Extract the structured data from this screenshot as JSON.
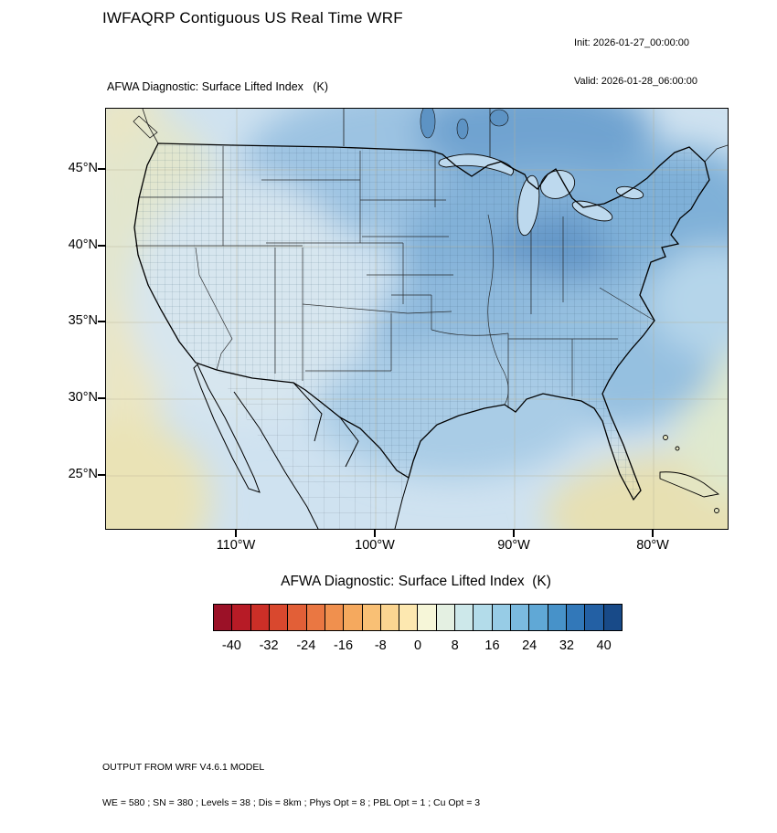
{
  "header": {
    "title": "IWFAQRP Contiguous US Real Time WRF",
    "init_label": "Init: 2026-01-27_00:00:00",
    "valid_label": "Valid: 2026-01-28_06:00:00"
  },
  "map": {
    "field_label": "AFWA Diagnostic: Surface Lifted Index   (K)",
    "lat_ticks": [
      "45°N",
      "40°N",
      "35°N",
      "30°N",
      "25°N"
    ],
    "lon_ticks": [
      "110°W",
      "100°W",
      "90°W",
      "80°W"
    ]
  },
  "colorbar": {
    "title": "AFWA Diagnostic: Surface Lifted Index  (K)",
    "tick_labels": [
      "-40",
      "-32",
      "-24",
      "-16",
      "-8",
      "0",
      "8",
      "16",
      "24",
      "32",
      "40"
    ],
    "colors": [
      "#9b1127",
      "#b71b26",
      "#cc2f27",
      "#d9482e",
      "#e25f37",
      "#ea7742",
      "#f0904e",
      "#f5a95e",
      "#f9c075",
      "#fbd591",
      "#fde8b0",
      "#f6f6d8",
      "#e4f0e2",
      "#cde8ea",
      "#b3dcea",
      "#97cce6",
      "#7bbadf",
      "#60a8d6",
      "#4792c9",
      "#3278b9",
      "#2360a4",
      "#184a88"
    ]
  },
  "footer": {
    "line1": "OUTPUT FROM WRF V4.6.1 MODEL",
    "line2": "WE = 580 ; SN = 380 ; Levels = 38 ; Dis = 8km ; Phys Opt = 8 ; PBL Opt = 1 ; Cu Opt = 3"
  },
  "chart_data": {
    "type": "heatmap",
    "subtype": "filled_contour_map",
    "title": "AFWA Diagnostic: Surface Lifted Index  (K)",
    "units": "K",
    "region": "Contiguous United States (WRF domain with county boundaries)",
    "lat_tick_values_deg_n": [
      45,
      40,
      35,
      30,
      25
    ],
    "lon_tick_values_deg_w": [
      110,
      100,
      90,
      80
    ],
    "colorbar_ticks": [
      -40,
      -32,
      -24,
      -16,
      -8,
      0,
      8,
      16,
      24,
      32,
      40
    ],
    "colorbar_cell_width_K": 4,
    "colorbar_range_K": [
      -44,
      44
    ],
    "colorbar_colors_ref": "colorbar.colors",
    "legend_position": "bottom",
    "grid_estimate": {
      "note": "Approximate surface lifted index (K) read from fill colors; field is stable (positive) everywhere, darkest blues over Midwest/Ohio Valley, pale yellow near West Coast and open ocean corners",
      "lats_deg_n": [
        47,
        42,
        37,
        32,
        27
      ],
      "lons_deg_w": [
        122,
        115,
        110,
        105,
        100,
        95,
        90,
        85,
        80,
        75
      ],
      "values_K": [
        [
          4,
          10,
          14,
          16,
          20,
          24,
          26,
          24,
          20,
          16
        ],
        [
          2,
          8,
          12,
          14,
          18,
          26,
          30,
          28,
          22,
          18
        ],
        [
          2,
          6,
          10,
          12,
          16,
          24,
          28,
          26,
          22,
          16
        ],
        [
          4,
          6,
          8,
          12,
          16,
          20,
          22,
          20,
          16,
          12
        ],
        [
          4,
          4,
          8,
          12,
          14,
          16,
          16,
          14,
          12,
          8
        ]
      ]
    }
  }
}
